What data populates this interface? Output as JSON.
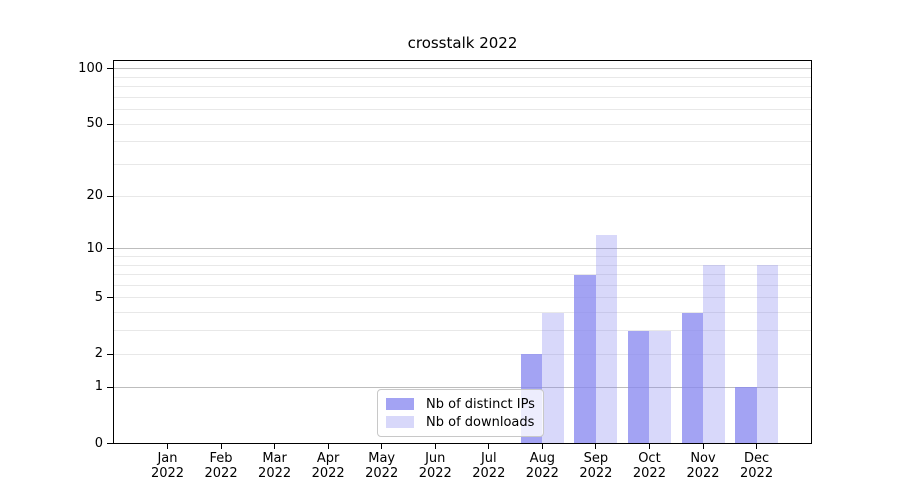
{
  "chart_data": {
    "type": "bar",
    "title": "crosstalk 2022",
    "categories": [
      "Jan 2022",
      "Feb 2022",
      "Mar 2022",
      "Apr 2022",
      "May 2022",
      "Jun 2022",
      "Jul 2022",
      "Aug 2022",
      "Sep 2022",
      "Oct 2022",
      "Nov 2022",
      "Dec 2022"
    ],
    "series": [
      {
        "name": "Nb of distinct IPs",
        "color": "#A3A3F3",
        "fill": "rgba(135,135,240,0.77)",
        "values": [
          0,
          0,
          0,
          0,
          0,
          0,
          0,
          2,
          7,
          3,
          4,
          1
        ]
      },
      {
        "name": "Nb of downloads",
        "color": "#D9D9FA",
        "fill": "rgba(135,135,240,0.32)",
        "values": [
          0,
          0,
          0,
          0,
          0,
          0,
          0,
          4,
          12,
          3,
          8,
          8
        ]
      }
    ],
    "xlabel": "",
    "ylabel": "",
    "y_scale": "log10(1+x)",
    "y_ticks": [
      0,
      1,
      2,
      5,
      10,
      20,
      50,
      100
    ],
    "y_major_gridlines": [
      1,
      10,
      100
    ],
    "y_minor_gridlines": [
      2,
      3,
      4,
      5,
      6,
      7,
      8,
      9,
      20,
      30,
      40,
      50,
      60,
      70,
      80,
      90
    ],
    "ylim": [
      0,
      111
    ],
    "grid": "horizontal",
    "legend_position": "inside-bottom-center",
    "colors": {
      "grid_major": "#bdbdbd",
      "grid_minor": "#e8e8e8",
      "axis": "#000000",
      "legend_border": "#c8c8c8",
      "legend_bg": "rgba(255,255,255,0.8)"
    }
  }
}
